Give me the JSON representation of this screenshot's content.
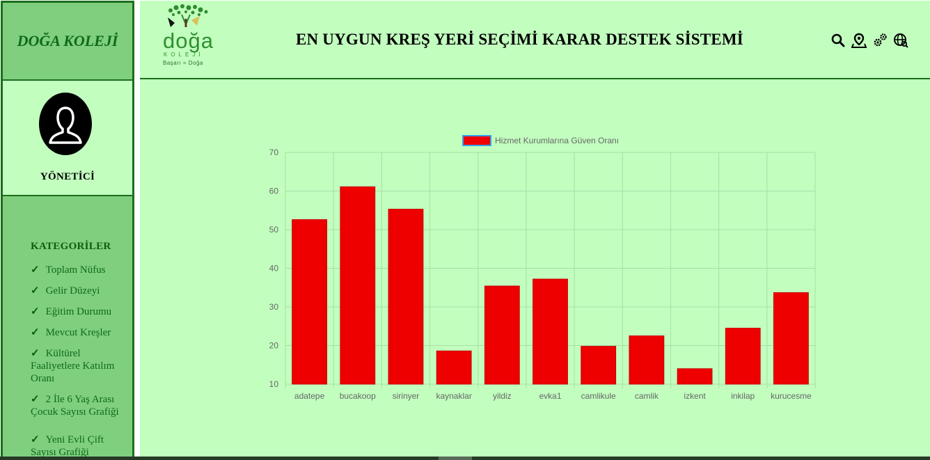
{
  "sidebar": {
    "brand": "DOĞA KOLEJİ",
    "role": "YÖNETİCİ",
    "categories_heading": "KATEGORİLER",
    "items": [
      {
        "label": "Toplam Nüfus"
      },
      {
        "label": "Gelir Düzeyi"
      },
      {
        "label": "Eğitim Durumu"
      },
      {
        "label": "Mevcut Kreşler"
      },
      {
        "label": "Kültürel Faaliyetlere Katılım Oranı"
      },
      {
        "label": "2 İle 6 Yaş Arası Çocuk Sayısı Grafiği"
      },
      {
        "label": "Yeni Evli Çift Sayısı Grafiği"
      }
    ],
    "check_glyph": "✓"
  },
  "header": {
    "logo": {
      "name": "doğa",
      "sub": "KOLEJİ",
      "tagline": "Başarı = Doğa"
    },
    "title": "EN UYGUN KREŞ YERİ SEÇİMİ KARAR DESTEK SİSTEMİ",
    "icons": [
      "search-icon",
      "location-icon",
      "settings-icon",
      "globe-icon"
    ]
  },
  "colors": {
    "bar": "#ee0000",
    "bar_border": "#c80000",
    "legend_border": "#36a2eb",
    "grid": "#a9dca6",
    "axis_text": "#666666"
  },
  "chart_data": {
    "type": "bar",
    "categories": [
      "adatepe",
      "bucakoop",
      "sirinyer",
      "kaynaklar",
      "yildiz",
      "evka1",
      "camlikule",
      "camlik",
      "izkent",
      "inkilap",
      "kurucesme"
    ],
    "series": [
      {
        "name": "Hizmet Kurumlarına Güven Oranı",
        "values": [
          52.6,
          61.1,
          55.3,
          18.6,
          35.4,
          37.2,
          19.8,
          22.5,
          14.0,
          24.5,
          33.7
        ]
      }
    ],
    "ylim": [
      10,
      70
    ],
    "yticks": [
      10,
      20,
      30,
      40,
      50,
      60,
      70
    ],
    "grid": true,
    "legend": "top"
  }
}
